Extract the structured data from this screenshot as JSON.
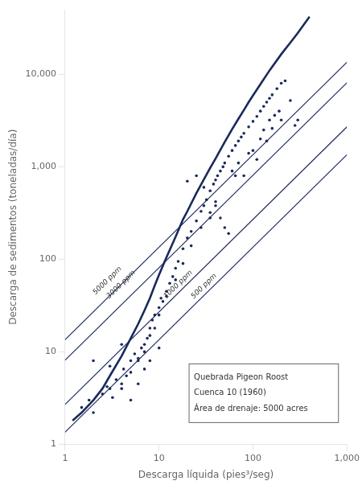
{
  "chart_data": {
    "type": "scatter",
    "xlabel": "Descarga líquida (pies³/seg)",
    "ylabel": "Descarga de sedimentos (toneladas/día)",
    "log": true,
    "grid": false,
    "xlim": [
      1,
      1000
    ],
    "ylim": [
      1,
      50000
    ],
    "xticks": [
      1,
      10,
      100,
      {
        "value": 1000,
        "label": "1,000"
      }
    ],
    "yticks": [
      1,
      10,
      100,
      {
        "value": 1000,
        "label": "1,000"
      },
      {
        "value": 10000,
        "label": "10,000"
      }
    ],
    "series": [
      {
        "type": "line",
        "color": "#1a2a5a",
        "x": [
          1.0,
          1000.0
        ],
        "values": [
          13.495,
          13495
        ]
      },
      {
        "type": "line",
        "color": "#1a2a5a",
        "x": [
          1.0,
          1000.0
        ],
        "values": [
          8.097,
          8097
        ]
      },
      {
        "type": "line",
        "color": "#1a2a5a",
        "x": [
          1.0,
          1000.0
        ],
        "values": [
          2.699,
          2699
        ]
      },
      {
        "type": "line",
        "color": "#1a2a5a",
        "x": [
          1.0,
          1000.0
        ],
        "values": [
          1.3495,
          1349.5
        ]
      },
      {
        "type": "line",
        "color": "#1a2a5a",
        "x": [
          1.2,
          1.5,
          2.0,
          2.5,
          3.0,
          4.0,
          5.0,
          6.0,
          7.0,
          8.0,
          9.0,
          10.0,
          12.0,
          15.0,
          18.0,
          20.0,
          25.0,
          30.0,
          35.0,
          40.0,
          50.0,
          60.0,
          70.0,
          80.0,
          90.0,
          100.0,
          120.0,
          150.0,
          200.0,
          250.0,
          300.0,
          400.0
        ],
        "values": [
          1.8,
          2.2,
          3.0,
          4.0,
          5.5,
          9.0,
          14.0,
          20.0,
          28.0,
          38.0,
          52.0,
          68.0,
          105.0,
          175.0,
          270.0,
          330.0,
          520.0,
          730.0,
          970.0,
          1230.0,
          1850.0,
          2550.0,
          3300.0,
          4100.0,
          5000.0,
          5900.0,
          7800.0,
          11000.0,
          16500.0,
          22000.0,
          28000.0,
          42000.0
        ]
      },
      {
        "type": "scatter",
        "color": "#1a2a5a",
        "x": [
          1.5,
          1.8,
          2.0,
          2.5,
          2.8,
          3.0,
          3.2,
          3.5,
          4.0,
          4.2,
          4.5,
          5.0,
          5.5,
          6.0,
          6.5,
          7.0,
          7.5,
          8.0,
          8.5,
          9.0,
          10.0,
          10.5,
          11.0,
          12.0,
          13.0,
          14.0,
          15.0,
          16.0,
          18.0,
          20.0,
          22.0,
          25.0,
          28.0,
          30.0,
          32.0,
          35.0,
          38.0,
          40.0,
          42.0,
          45.0,
          48.0,
          50.0,
          55.0,
          60.0,
          65.0,
          70.0,
          75.0,
          80.0,
          90.0,
          100.0,
          110.0,
          120.0,
          130.0,
          140.0,
          150.0,
          160.0,
          180.0,
          200.0,
          220.0,
          250.0,
          280.0,
          300.0,
          20.0,
          25.0,
          30.0,
          35.0,
          40.0,
          45.0,
          50.0,
          55.0,
          60.0,
          65.0,
          70.0,
          80.0,
          90.0,
          100.0,
          110.0,
          120.0,
          130.0,
          140.0,
          150.0,
          160.0,
          170.0,
          190.0,
          200.0,
          4.0,
          5.0,
          6.0,
          7.0,
          8.0,
          9.0,
          10.0,
          12.0,
          15.0,
          18.0,
          22.0,
          28.0,
          35.0,
          40.0,
          2.0,
          3.0,
          4.0,
          5.0,
          6.0,
          7.0,
          8.0,
          10.0
        ],
        "values": [
          2.5,
          3.0,
          2.2,
          3.5,
          4.2,
          4.0,
          3.2,
          5.0,
          4.5,
          6.5,
          5.5,
          8.0,
          9.5,
          8.0,
          11.0,
          12.0,
          14.0,
          18.0,
          22.0,
          25.0,
          30.0,
          38.0,
          35.0,
          45.0,
          55.0,
          65.0,
          80.0,
          95.0,
          130.0,
          170.0,
          200.0,
          260.0,
          330.0,
          380.0,
          440.0,
          550.0,
          650.0,
          720.0,
          800.0,
          900.0,
          1000.0,
          1100.0,
          1300.0,
          1500.0,
          1700.0,
          1900.0,
          2100.0,
          2300.0,
          2700.0,
          3100.0,
          3500.0,
          4000.0,
          4500.0,
          5000.0,
          5500.0,
          6000.0,
          7000.0,
          8000.0,
          8500.0,
          5200.0,
          2800.0,
          3200.0,
          700.0,
          800.0,
          600.0,
          320.0,
          380.0,
          280.0,
          220.0,
          190.0,
          900.0,
          800.0,
          1100.0,
          800.0,
          1400.0,
          1500.0,
          1200.0,
          2000.0,
          2500.0,
          1900.0,
          3200.0,
          2600.0,
          3600.0,
          4000.0,
          3200.0,
          4.0,
          6.0,
          8.5,
          10.0,
          15.0,
          18.0,
          25.0,
          40.0,
          60.0,
          90.0,
          140.0,
          220.0,
          280.0,
          420.0,
          8.0,
          7.0,
          12.0,
          3.0,
          4.5,
          6.5,
          8.0,
          11.0
        ]
      }
    ],
    "annotations": [
      {
        "text": "5000 ppm",
        "x": 3.0,
        "y": 55
      },
      {
        "text": "3000 ppm",
        "x": 4.2,
        "y": 50
      },
      {
        "text": "1000 ppm",
        "x": 17.0,
        "y": 50
      },
      {
        "text": "500 ppm",
        "x": 32.0,
        "y": 48
      }
    ],
    "text_box": [
      "Quebrada Pigeon Roost",
      "Cuenca 10 (1960)",
      "Área de drenaje: 5000 acres"
    ]
  }
}
